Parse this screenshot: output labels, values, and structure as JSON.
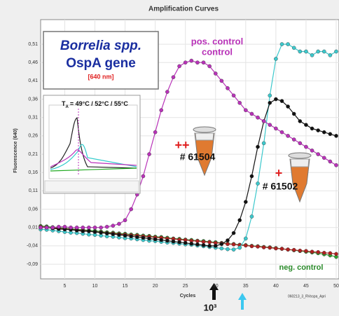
{
  "chart_data": {
    "type": "line",
    "title": "Amplification Curves",
    "x_label": "Cycles",
    "y_label": "Fluorescence (640)",
    "x": [
      1,
      2,
      3,
      4,
      5,
      6,
      7,
      8,
      9,
      10,
      11,
      12,
      13,
      14,
      15,
      16,
      17,
      18,
      19,
      20,
      21,
      22,
      23,
      24,
      25,
      26,
      27,
      28,
      29,
      30,
      31,
      32,
      33,
      34,
      35,
      36,
      37,
      38,
      39,
      40,
      41,
      42,
      43,
      44,
      45,
      46,
      47,
      48,
      49,
      50
    ],
    "xlim": [
      1,
      50
    ],
    "xticks": [
      5,
      10,
      15,
      20,
      25,
      30,
      35,
      40,
      45,
      50
    ],
    "ylim": [
      -0.13,
      0.577
    ],
    "yticks": [
      {
        "value": 0.51,
        "label": "0,51"
      },
      {
        "value": 0.46,
        "label": "0,46"
      },
      {
        "value": 0.41,
        "label": "0,41"
      },
      {
        "value": 0.36,
        "label": "0,36"
      },
      {
        "value": 0.31,
        "label": "0,31"
      },
      {
        "value": 0.26,
        "label": "0,26"
      },
      {
        "value": 0.21,
        "label": "0,21"
      },
      {
        "value": 0.16,
        "label": "0,16"
      },
      {
        "value": 0.11,
        "label": "0,11"
      },
      {
        "value": 0.06,
        "label": "0,06"
      },
      {
        "value": 0.01,
        "label": "0,01"
      },
      {
        "value": -0.04,
        "label": "-0,04"
      },
      {
        "value": -0.09,
        "label": "-0,09"
      }
    ],
    "grid": true,
    "series": [
      {
        "color": "#2fa02f",
        "values": [
          0.014,
          0.013,
          0.011,
          0.01,
          0.008,
          0.007,
          0.005,
          0.004,
          0.002,
          0.001,
          -0.001,
          -0.003,
          -0.004,
          -0.006,
          -0.007,
          -0.009,
          -0.01,
          -0.012,
          -0.013,
          -0.015,
          -0.016,
          -0.018,
          -0.02,
          -0.021,
          -0.023,
          -0.024,
          -0.026,
          -0.027,
          -0.029,
          -0.03,
          -0.032,
          -0.034,
          -0.035,
          -0.037,
          -0.038,
          -0.04,
          -0.041,
          -0.043,
          -0.044,
          -0.046,
          -0.048,
          -0.05,
          -0.052,
          -0.054,
          -0.056,
          -0.058,
          -0.06,
          -0.063,
          -0.066,
          -0.07
        ]
      },
      {
        "color": "#b02020",
        "values": [
          0.012,
          0.011,
          0.009,
          0.008,
          0.006,
          0.005,
          0.003,
          0.002,
          0,
          -0.002,
          -0.003,
          -0.005,
          -0.006,
          -0.008,
          -0.009,
          -0.011,
          -0.012,
          -0.014,
          -0.015,
          -0.017,
          -0.018,
          -0.02,
          -0.021,
          -0.023,
          -0.024,
          -0.026,
          -0.027,
          -0.029,
          -0.03,
          -0.032,
          -0.033,
          -0.035,
          -0.036,
          -0.038,
          -0.039,
          -0.041,
          -0.042,
          -0.044,
          -0.045,
          -0.047,
          -0.048,
          -0.05,
          -0.051,
          -0.053,
          -0.054,
          -0.056,
          -0.057,
          -0.059,
          -0.06,
          -0.062
        ]
      },
      {
        "color": "#3cc8cc",
        "values": [
          0.005,
          0.004,
          0.002,
          0,
          -0.002,
          -0.004,
          -0.005,
          -0.007,
          -0.009,
          -0.01,
          -0.012,
          -0.014,
          -0.015,
          -0.017,
          -0.019,
          -0.02,
          -0.022,
          -0.024,
          -0.026,
          -0.027,
          -0.029,
          -0.031,
          -0.032,
          -0.034,
          -0.036,
          -0.037,
          -0.039,
          -0.041,
          -0.043,
          -0.045,
          -0.047,
          -0.049,
          -0.05,
          -0.045,
          -0.02,
          0.04,
          0.13,
          0.24,
          0.37,
          0.47,
          0.51,
          0.51,
          0.5,
          0.49,
          0.49,
          0.48,
          0.49,
          0.49,
          0.48,
          0.49
        ]
      },
      {
        "color": "#111111",
        "values": [
          0.01,
          0.01,
          0.008,
          0.006,
          0.005,
          0.004,
          0.002,
          0,
          0,
          -0.002,
          -0.004,
          -0.006,
          -0.008,
          -0.01,
          -0.012,
          -0.014,
          -0.016,
          -0.018,
          -0.02,
          -0.022,
          -0.024,
          -0.026,
          -0.028,
          -0.03,
          -0.032,
          -0.034,
          -0.036,
          -0.038,
          -0.04,
          -0.04,
          -0.035,
          -0.025,
          -0.005,
          0.03,
          0.08,
          0.15,
          0.23,
          0.3,
          0.35,
          0.36,
          0.355,
          0.34,
          0.32,
          0.3,
          0.29,
          0.28,
          0.275,
          0.27,
          0.265,
          0.26
        ]
      },
      {
        "color": "#b832b8",
        "values": [
          0.01,
          0.01,
          0.01,
          0.012,
          0.012,
          0.01,
          0.01,
          0.01,
          0.01,
          0.01,
          0.01,
          0.012,
          0.015,
          0.02,
          0.03,
          0.06,
          0.1,
          0.15,
          0.21,
          0.27,
          0.33,
          0.38,
          0.42,
          0.45,
          0.46,
          0.465,
          0.46,
          0.46,
          0.45,
          0.43,
          0.41,
          0.39,
          0.37,
          0.35,
          0.33,
          0.32,
          0.31,
          0.3,
          0.29,
          0.28,
          0.27,
          0.26,
          0.25,
          0.24,
          0.23,
          0.22,
          0.21,
          0.2,
          0.19,
          0.18
        ]
      }
    ],
    "annotations": [
      "Borrelia spp.",
      "OspA gene",
      "[640 nm]",
      "pos. control",
      "neg. control",
      "++",
      "# 61504",
      "+",
      "# 61502",
      "10³",
      "060213_3_RVospa_Apri",
      "T",
      "A",
      "= 49°C / 52°C / 55°C"
    ]
  }
}
